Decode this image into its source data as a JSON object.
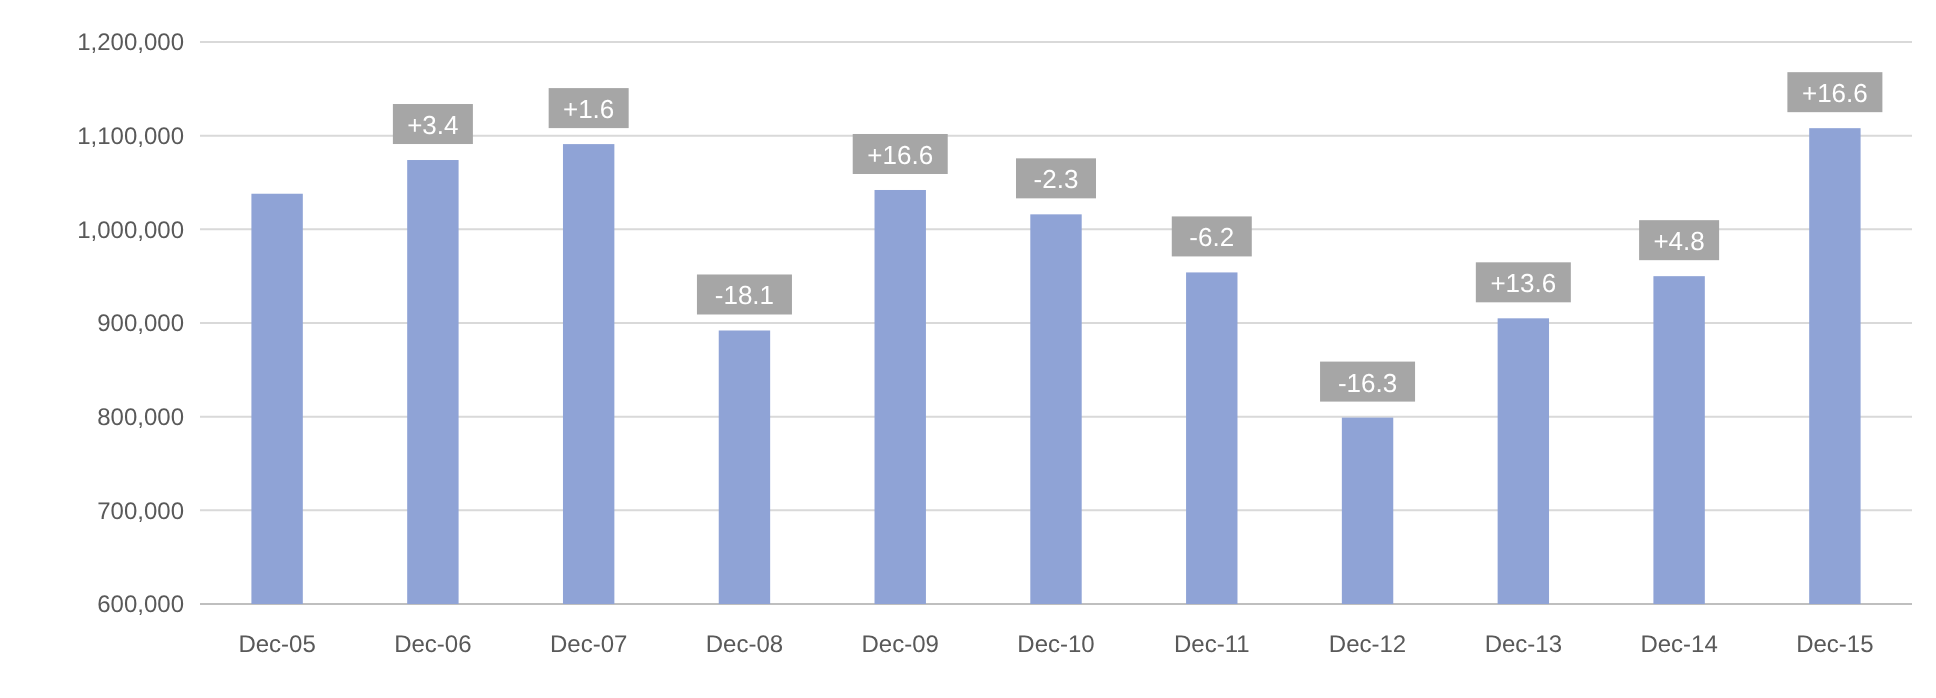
{
  "chart_data": {
    "type": "bar",
    "categories": [
      "Dec-05",
      "Dec-06",
      "Dec-07",
      "Dec-08",
      "Dec-09",
      "Dec-10",
      "Dec-11",
      "Dec-12",
      "Dec-13",
      "Dec-14",
      "Dec-15"
    ],
    "values": [
      1038000,
      1074000,
      1091000,
      892000,
      1042000,
      1016000,
      954000,
      799000,
      905000,
      950000,
      1108000
    ],
    "color": "#8fa3d6",
    "ylim": [
      600000,
      1200000
    ],
    "yticks": [
      {
        "value": 600000,
        "label": "600,000"
      },
      {
        "value": 700000,
        "label": "700,000"
      },
      {
        "value": 800000,
        "label": "800,000"
      },
      {
        "value": 900000,
        "label": "900,000"
      },
      {
        "value": 1000000,
        "label": "1,000,000"
      },
      {
        "value": 1100000,
        "label": "1,100,000"
      },
      {
        "value": 1200000,
        "label": "1,200,000"
      }
    ],
    "grid": "y",
    "annotations": [
      {
        "text": "+3.4",
        "x": "Dec-06",
        "y": 1074000
      },
      {
        "text": "+1.6",
        "x": "Dec-07",
        "y": 1091000
      },
      {
        "text": "-18.1",
        "x": "Dec-08",
        "y": 892000
      },
      {
        "text": "+16.6",
        "x": "Dec-09",
        "y": 1042000
      },
      {
        "text": "-2.3",
        "x": "Dec-10",
        "y": 1016000
      },
      {
        "text": "-6.2",
        "x": "Dec-11",
        "y": 954000
      },
      {
        "text": "-16.3",
        "x": "Dec-12",
        "y": 799000
      },
      {
        "text": "+13.6",
        "x": "Dec-13",
        "y": 905000
      },
      {
        "text": "+4.8",
        "x": "Dec-14",
        "y": 950000
      },
      {
        "text": "+16.6",
        "x": "Dec-15",
        "y": 1108000
      }
    ]
  }
}
